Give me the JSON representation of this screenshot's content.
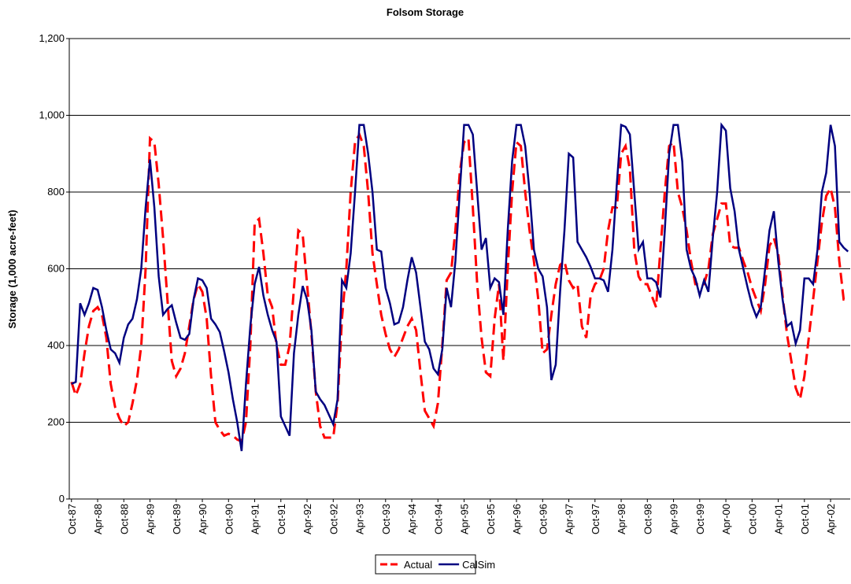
{
  "chart_data": {
    "type": "line",
    "title": "Folsom Storage",
    "y_label": "Storage (1,000 acre-feet)",
    "categories": [
      "Oct-87",
      null,
      null,
      null,
      null,
      null,
      "Apr-88",
      null,
      null,
      null,
      null,
      null,
      "Oct-88",
      null,
      null,
      null,
      null,
      null,
      "Apr-89",
      null,
      null,
      null,
      null,
      null,
      "Oct-89",
      null,
      null,
      null,
      null,
      null,
      "Apr-90",
      null,
      null,
      null,
      null,
      null,
      "Oct-90",
      null,
      null,
      null,
      null,
      null,
      "Apr-91",
      null,
      null,
      null,
      null,
      null,
      "Oct-91",
      null,
      null,
      null,
      null,
      null,
      "Apr-92",
      null,
      null,
      null,
      null,
      null,
      "Oct-92",
      null,
      null,
      null,
      null,
      null,
      "Apr-93",
      null,
      null,
      null,
      null,
      null,
      "Oct-93",
      null,
      null,
      null,
      null,
      null,
      "Apr-94",
      null,
      null,
      null,
      null,
      null,
      "Oct-94",
      null,
      null,
      null,
      null,
      null,
      "Apr-95",
      null,
      null,
      null,
      null,
      null,
      "Oct-95",
      null,
      null,
      null,
      null,
      null,
      "Apr-96",
      null,
      null,
      null,
      null,
      null,
      "Oct-96",
      null,
      null,
      null,
      null,
      null,
      "Apr-97",
      null,
      null,
      null,
      null,
      null,
      "Oct-97",
      null,
      null,
      null,
      null,
      null,
      "Apr-98",
      null,
      null,
      null,
      null,
      null,
      "Oct-98",
      null,
      null,
      null,
      null,
      null,
      "Apr-99",
      null,
      null,
      null,
      null,
      null,
      "Oct-99",
      null,
      null,
      null,
      null,
      null,
      "Apr-00",
      null,
      null,
      null,
      null,
      null,
      "Oct-00",
      null,
      null,
      null,
      null,
      null,
      "Apr-01",
      null,
      null,
      null,
      null,
      null,
      "Oct-01",
      null,
      null,
      null,
      null,
      null,
      "Apr-02",
      null,
      null,
      null,
      null
    ],
    "series": [
      {
        "name": "Actual",
        "color": "#ff0000",
        "dashed": true,
        "values": [
          305,
          270,
          300,
          380,
          450,
          490,
          500,
          480,
          420,
          300,
          240,
          210,
          190,
          200,
          250,
          310,
          400,
          600,
          940,
          930,
          820,
          680,
          520,
          360,
          320,
          340,
          380,
          450,
          520,
          560,
          540,
          470,
          320,
          200,
          180,
          165,
          170,
          165,
          155,
          150,
          200,
          400,
          720,
          730,
          640,
          530,
          500,
          400,
          350,
          350,
          400,
          550,
          700,
          690,
          560,
          430,
          280,
          190,
          160,
          160,
          160,
          250,
          470,
          600,
          800,
          930,
          950,
          920,
          800,
          640,
          560,
          480,
          430,
          390,
          370,
          390,
          420,
          450,
          470,
          440,
          330,
          230,
          210,
          190,
          250,
          400,
          570,
          590,
          700,
          850,
          930,
          940,
          760,
          560,
          420,
          330,
          320,
          470,
          560,
          360,
          600,
          800,
          930,
          920,
          800,
          700,
          620,
          520,
          380,
          390,
          480,
          560,
          610,
          620,
          570,
          550,
          560,
          450,
          420,
          530,
          560,
          570,
          600,
          700,
          760,
          760,
          900,
          920,
          860,
          650,
          580,
          560,
          560,
          530,
          500,
          650,
          800,
          920,
          930,
          800,
          760,
          700,
          620,
          560,
          560,
          560,
          600,
          690,
          730,
          770,
          770,
          660,
          655,
          655,
          620,
          590,
          550,
          520,
          490,
          560,
          660,
          680,
          640,
          530,
          430,
          360,
          290,
          260,
          320,
          420,
          520,
          620,
          720,
          790,
          810,
          760,
          620,
          520,
          520
        ]
      },
      {
        "name": "CalSim",
        "color": "#000080",
        "dashed": false,
        "values": [
          300,
          305,
          510,
          480,
          510,
          550,
          545,
          500,
          440,
          390,
          380,
          355,
          420,
          455,
          470,
          520,
          600,
          760,
          885,
          760,
          580,
          480,
          495,
          505,
          460,
          420,
          415,
          430,
          520,
          575,
          570,
          550,
          470,
          455,
          435,
          385,
          330,
          260,
          200,
          125,
          300,
          450,
          560,
          605,
          530,
          480,
          440,
          410,
          215,
          190,
          165,
          380,
          480,
          555,
          520,
          440,
          280,
          260,
          245,
          220,
          195,
          260,
          570,
          550,
          640,
          800,
          975,
          975,
          900,
          800,
          650,
          645,
          550,
          510,
          455,
          460,
          500,
          570,
          630,
          590,
          500,
          410,
          390,
          340,
          325,
          390,
          550,
          500,
          620,
          800,
          975,
          975,
          950,
          800,
          650,
          680,
          550,
          575,
          565,
          480,
          700,
          880,
          975,
          975,
          920,
          800,
          650,
          600,
          580,
          500,
          310,
          350,
          540,
          700,
          900,
          890,
          670,
          650,
          630,
          605,
          575,
          575,
          570,
          540,
          650,
          820,
          975,
          970,
          950,
          800,
          650,
          670,
          575,
          575,
          565,
          525,
          700,
          900,
          975,
          975,
          880,
          650,
          600,
          575,
          530,
          570,
          540,
          680,
          800,
          975,
          960,
          810,
          750,
          650,
          600,
          550,
          505,
          475,
          500,
          600,
          700,
          750,
          620,
          520,
          450,
          460,
          405,
          440,
          575,
          575,
          560,
          650,
          800,
          850,
          975,
          920,
          670,
          655,
          645
        ]
      }
    ],
    "ylim": [
      0,
      1200
    ],
    "yticks": [
      0,
      200,
      400,
      600,
      800,
      {
        "value": 1000,
        "label": "1,000"
      },
      {
        "value": 1200,
        "label": "1,200"
      }
    ],
    "grid": true,
    "legend": "bottom"
  }
}
